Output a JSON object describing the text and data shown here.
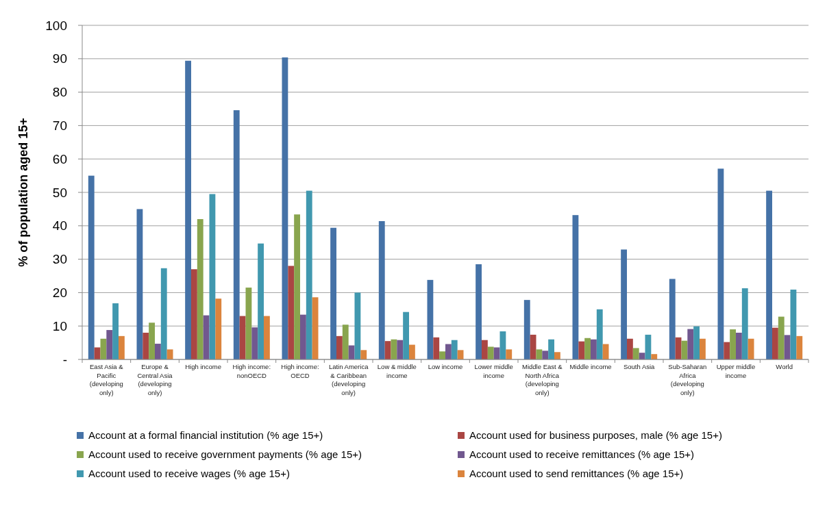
{
  "chart_data": {
    "type": "bar",
    "ylabel": "% of population aged 15+",
    "categories": [
      "East Asia & Pacific (developing only)",
      "Europe & Central Asia (developing only)",
      "High income",
      "High income: nonOECD",
      "High income: OECD",
      "Latin America & Caribbean (developing only)",
      "Low & middle income",
      "Low income",
      "Lower middle income",
      "Middle East & North Africa (developing only)",
      "Middle income",
      "South Asia",
      "Sub-Saharan Africa (developing only)",
      "Upper middle income",
      "World"
    ],
    "series": [
      {
        "name": "Account at a formal financial institution (% age 15+)",
        "color": "#4572a7",
        "values": [
          55,
          45,
          89.4,
          74.6,
          90.4,
          39.4,
          41.4,
          23.8,
          28.5,
          17.8,
          43.2,
          32.9,
          24.1,
          57.1,
          50.5
        ]
      },
      {
        "name": "Account used for business purposes, male (% age 15+)",
        "color": "#aa4643",
        "values": [
          3.6,
          8,
          27,
          13,
          28,
          7,
          5.5,
          6.6,
          5.8,
          7.4,
          5.4,
          6.2,
          6.6,
          5.2,
          9.5
        ]
      },
      {
        "name": "Account used to receive government payments (% age 15+)",
        "color": "#89a54e",
        "values": [
          6.2,
          11,
          42,
          21.5,
          43.4,
          10.4,
          6,
          2.4,
          3.8,
          3,
          6.4,
          3.4,
          5.6,
          9,
          12.8
        ]
      },
      {
        "name": "Account used to receive remittances  (% age 15+)",
        "color": "#71588f",
        "values": [
          8.8,
          4.7,
          13.2,
          9.6,
          13.4,
          4.2,
          5.8,
          4.6,
          3.6,
          2.6,
          6,
          2,
          9.1,
          8,
          7.3
        ]
      },
      {
        "name": "Account used to receive wages (% age 15+)",
        "color": "#4198af",
        "values": [
          16.8,
          27.3,
          49.5,
          34.7,
          50.5,
          20,
          14.2,
          5.8,
          8.4,
          6,
          15,
          7.4,
          9.9,
          21.3,
          20.9
        ]
      },
      {
        "name": "Account used to send remittances  (% age 15+)",
        "color": "#db843d",
        "values": [
          7,
          3,
          18.2,
          13,
          18.6,
          2.8,
          4.4,
          2.8,
          3,
          2.2,
          4.6,
          1.6,
          6.2,
          6.2,
          7
        ]
      }
    ],
    "ylim": [
      0,
      100
    ],
    "yticks": [
      {
        "value": 0,
        "label": "-"
      },
      10,
      20,
      30,
      40,
      50,
      60,
      70,
      80,
      90,
      100
    ],
    "grid": "y",
    "legend": "bottom"
  }
}
